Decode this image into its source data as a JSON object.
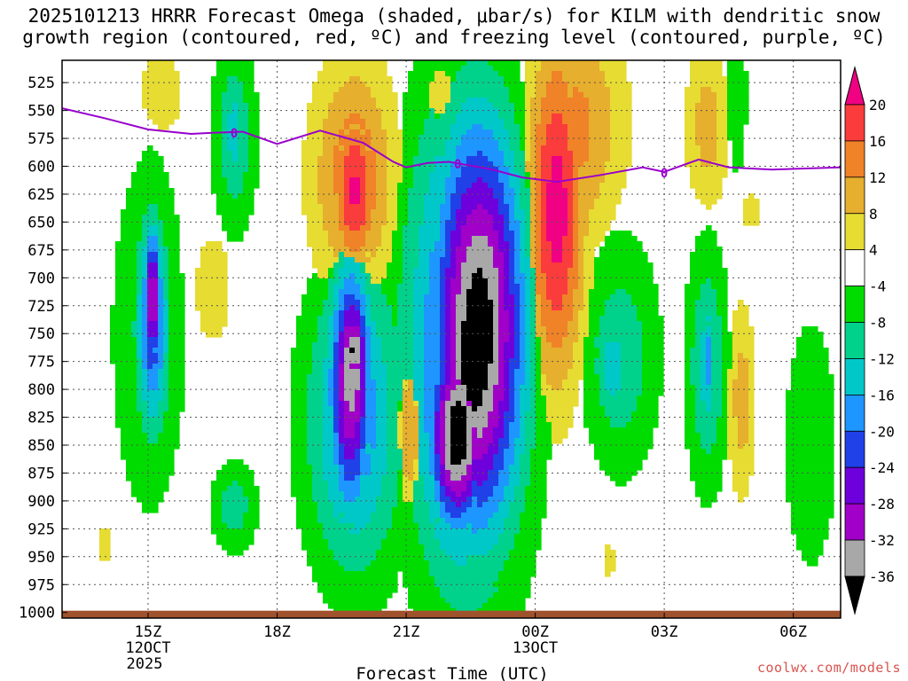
{
  "title": {
    "line1": "2025101213 HRRR Forecast Omega (shaded, μbar/s) for KILM with dendritic snow",
    "line2": "growth region (contoured, red, ºC) and freezing level (contoured, purple, ºC)"
  },
  "credit": "coolwx.com/models",
  "chart_data": {
    "type": "heatmap",
    "title": "2025101213 HRRR Forecast Omega (shaded, μbar/s) for KILM with dendritic snow growth region (contoured, red, ºC) and freezing level (contoured, purple, ºC)",
    "xlabel": "Forecast Time (UTC)",
    "ylabel": "",
    "x_units": "hours since 2025-10-12 13Z",
    "xlim": [
      0,
      18.1
    ],
    "ylim": [
      1005,
      505
    ],
    "y_inverted": true,
    "x_ticks": [
      {
        "x": 2,
        "labels": [
          "15Z",
          "12OCT",
          "2025"
        ]
      },
      {
        "x": 5,
        "labels": [
          "18Z"
        ]
      },
      {
        "x": 8,
        "labels": [
          "21Z"
        ]
      },
      {
        "x": 11,
        "labels": [
          "00Z",
          "13OCT"
        ]
      },
      {
        "x": 14,
        "labels": [
          "03Z"
        ]
      },
      {
        "x": 17,
        "labels": [
          "06Z"
        ]
      }
    ],
    "y_ticks": [
      525,
      550,
      575,
      600,
      625,
      650,
      675,
      700,
      725,
      750,
      775,
      800,
      825,
      850,
      875,
      900,
      925,
      950,
      975,
      1000
    ],
    "grid": true,
    "colorbar": {
      "labels": [
        "20",
        "16",
        "12",
        "8",
        "4",
        "-4",
        "-8",
        "-12",
        "-16",
        "-20",
        "-24",
        "-28",
        "-32",
        "-36"
      ],
      "bins": [
        {
          "color": "#000000"
        },
        {
          "color": "#a8a8a8"
        },
        {
          "color": "#a000c8"
        },
        {
          "color": "#6e00dc"
        },
        {
          "color": "#2040e8"
        },
        {
          "color": "#1e96ff"
        },
        {
          "color": "#00c8c8"
        },
        {
          "color": "#00d28c"
        },
        {
          "color": "#00dc00"
        },
        {
          "color": "#ffffff"
        },
        {
          "color": "#e6dc32"
        },
        {
          "color": "#e6af2d"
        },
        {
          "color": "#f08228"
        },
        {
          "color": "#fa3c3c"
        },
        {
          "color": "#f00082"
        }
      ]
    },
    "freezing_level": {
      "label": "0",
      "color": "#9900cc",
      "x": [
        0,
        1,
        2,
        3,
        3.5,
        4.2,
        5,
        6,
        7,
        7.7,
        8,
        8.5,
        9,
        10,
        10.7,
        11.5,
        12.5,
        13.5,
        14,
        14.8,
        15.5,
        16.5,
        18.1
      ],
      "p": [
        548,
        557,
        567,
        571,
        570,
        569,
        580,
        568,
        579,
        596,
        601,
        597,
        596,
        603,
        610,
        614,
        608,
        601,
        605,
        594,
        601,
        603,
        601
      ]
    },
    "ground_pressure": 1000,
    "regions": [
      {
        "v": 6,
        "c": 2.3,
        "p": 535,
        "rx": 0.8,
        "rp": 60
      },
      {
        "v": -6,
        "c": 2.0,
        "p": 750,
        "rx": 1.3,
        "rp": 230
      },
      {
        "v": -20,
        "c": 2.1,
        "p": 745,
        "rx": 0.45,
        "rp": 110
      },
      {
        "v": -34,
        "c": 2.1,
        "p": 720,
        "rx": 0.18,
        "rp": 70
      },
      {
        "v": 5,
        "c": 1.0,
        "p": 940,
        "rx": 0.25,
        "rp": 35
      },
      {
        "v": -10,
        "c": 4.0,
        "p": 575,
        "rx": 0.6,
        "rp": 100
      },
      {
        "v": -16,
        "c": 4.0,
        "p": 570,
        "rx": 0.25,
        "rp": 50
      },
      {
        "v": 6,
        "c": 3.5,
        "p": 710,
        "rx": 0.6,
        "rp": 70
      },
      {
        "v": -10,
        "c": 4.0,
        "p": 905,
        "rx": 0.6,
        "rp": 45
      },
      {
        "v": 14,
        "c": 6.8,
        "p": 615,
        "rx": 1.1,
        "rp": 120
      },
      {
        "v": 22,
        "c": 6.8,
        "p": 625,
        "rx": 0.55,
        "rp": 80
      },
      {
        "v": -16,
        "c": 6.8,
        "p": 830,
        "rx": 1.3,
        "rp": 150
      },
      {
        "v": -32,
        "c": 6.7,
        "p": 800,
        "rx": 0.55,
        "rp": 120
      },
      {
        "v": -38,
        "c": 6.8,
        "p": 765,
        "rx": 0.25,
        "rp": 40
      },
      {
        "v": 14,
        "c": 8.1,
        "p": 835,
        "rx": 0.35,
        "rp": 80
      },
      {
        "v": 10,
        "c": 9.0,
        "p": 545,
        "rx": 0.75,
        "rp": 50
      },
      {
        "v": -20,
        "c": 9.4,
        "p": 755,
        "rx": 1.6,
        "rp": 240
      },
      {
        "v": -38,
        "c": 9.7,
        "p": 740,
        "rx": 1.15,
        "rp": 190
      },
      {
        "v": -40,
        "c": 9.2,
        "p": 840,
        "rx": 0.7,
        "rp": 90
      },
      {
        "v": 12,
        "c": 12.0,
        "p": 565,
        "rx": 1.2,
        "rp": 110
      },
      {
        "v": 22,
        "c": 11.5,
        "p": 640,
        "rx": 0.7,
        "rp": 160
      },
      {
        "v": -10,
        "c": 13.0,
        "p": 770,
        "rx": 1.0,
        "rp": 120
      },
      {
        "v": -16,
        "c": 12.8,
        "p": 780,
        "rx": 0.45,
        "rp": 45
      },
      {
        "v": 5,
        "c": 12.7,
        "p": 955,
        "rx": 0.3,
        "rp": 30
      },
      {
        "v": 10,
        "c": 15.0,
        "p": 565,
        "rx": 0.55,
        "rp": 80
      },
      {
        "v": -12,
        "c": 15.0,
        "p": 780,
        "rx": 0.55,
        "rp": 120
      },
      {
        "v": -20,
        "c": 15.0,
        "p": 775,
        "rx": 0.12,
        "rp": 50
      },
      {
        "v": 10,
        "c": 15.8,
        "p": 810,
        "rx": 0.35,
        "rp": 95
      },
      {
        "v": -8,
        "c": 17.4,
        "p": 850,
        "rx": 0.7,
        "rp": 130
      },
      {
        "v": 5,
        "c": 16.0,
        "p": 640,
        "rx": 0.45,
        "rp": 30
      },
      {
        "v": -8,
        "c": 15.7,
        "p": 540,
        "rx": 0.25,
        "rp": 80
      }
    ]
  }
}
